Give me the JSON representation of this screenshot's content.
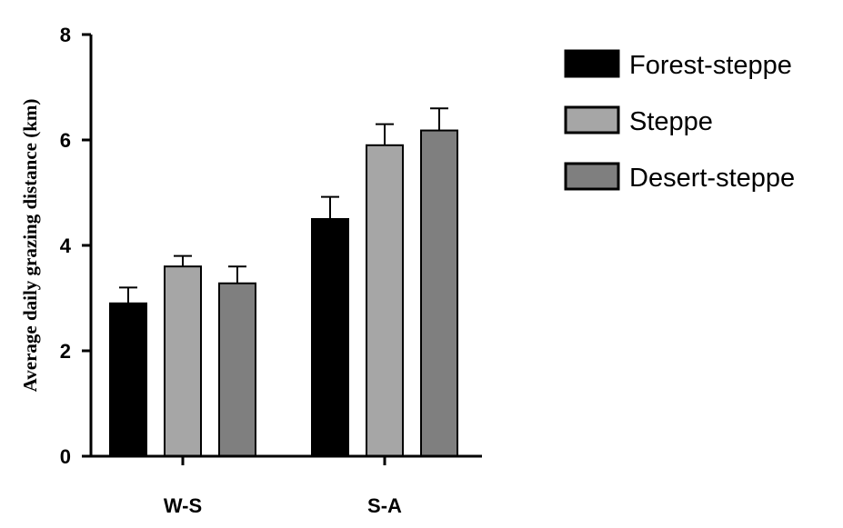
{
  "chart_data": {
    "type": "bar",
    "title": "",
    "xlabel": "",
    "ylabel": "Average daily grazing distance (km)",
    "ylim": [
      0,
      8
    ],
    "yticks": [
      0,
      2,
      4,
      6,
      8
    ],
    "categories": [
      "W-S",
      "S-A"
    ],
    "series": [
      {
        "name": "Forest-steppe",
        "color": "#000000",
        "values": [
          2.9,
          4.5
        ],
        "errors": [
          0.3,
          0.42
        ]
      },
      {
        "name": "Steppe",
        "color": "#a6a6a6",
        "values": [
          3.6,
          5.9
        ],
        "errors": [
          0.2,
          0.4
        ]
      },
      {
        "name": "Desert-steppe",
        "color": "#7f7f7f",
        "values": [
          3.28,
          6.18
        ],
        "errors": [
          0.32,
          0.42
        ]
      }
    ],
    "error_bars": "upper",
    "grid": false,
    "legend_position": "right"
  }
}
